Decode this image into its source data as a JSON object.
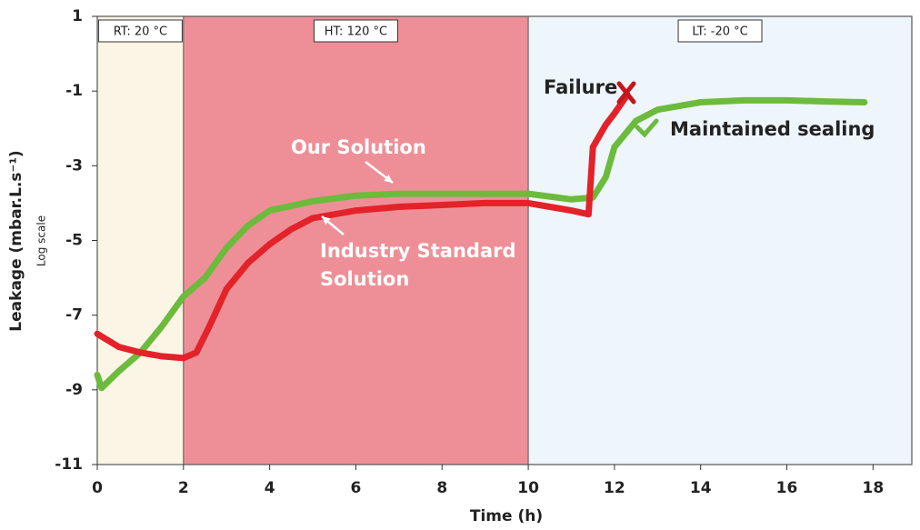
{
  "chart_data": {
    "type": "line",
    "x_label": "Time (h)",
    "y_label": "Leakage (mbar.L.s⁻¹)",
    "y_sublabel": "Log scale",
    "xlim": [
      0,
      18.9
    ],
    "ylim": [
      -11,
      1
    ],
    "xticks": [
      0,
      2,
      4,
      6,
      8,
      10,
      12,
      14,
      16,
      18
    ],
    "yticks": [
      1,
      -1,
      -3,
      -5,
      -7,
      -9,
      -11
    ],
    "regions": [
      {
        "label": "RT: 20 °C",
        "start": 0,
        "end": 2,
        "color": "#fbf5e6"
      },
      {
        "label": "HT: 120 °C",
        "start": 2,
        "end": 10,
        "color": "#ee8f97"
      },
      {
        "label": "LT: -20 °C",
        "start": 10,
        "end": 18.9,
        "color": "#eef5fb"
      }
    ],
    "series": [
      {
        "name": "Our Solution",
        "color": "#6cbb3c",
        "x": [
          0,
          0.1,
          0.5,
          1,
          1.5,
          2,
          2.5,
          3,
          3.5,
          4,
          5,
          6,
          7,
          8,
          9,
          10,
          11,
          11.5,
          11.8,
          12,
          12.5,
          13,
          14,
          15,
          16,
          17,
          17.8
        ],
        "values": [
          -8.6,
          -8.95,
          -8.5,
          -8.0,
          -7.3,
          -6.5,
          -6.0,
          -5.2,
          -4.6,
          -4.2,
          -3.95,
          -3.8,
          -3.75,
          -3.75,
          -3.75,
          -3.75,
          -3.9,
          -3.85,
          -3.3,
          -2.5,
          -1.8,
          -1.5,
          -1.3,
          -1.25,
          -1.25,
          -1.28,
          -1.3
        ]
      },
      {
        "name": "Industry Standard Solution",
        "color": "#e3222a",
        "x": [
          0,
          0.5,
          1,
          1.5,
          2,
          2.3,
          2.6,
          3,
          3.5,
          4,
          4.5,
          5,
          6,
          7,
          8,
          9,
          10,
          10.5,
          11,
          11.4,
          11.5,
          11.8,
          12,
          12.3
        ],
        "values": [
          -7.5,
          -7.85,
          -8.0,
          -8.1,
          -8.15,
          -8.0,
          -7.3,
          -6.3,
          -5.6,
          -5.1,
          -4.7,
          -4.4,
          -4.2,
          -4.1,
          -4.05,
          -4.0,
          -4.0,
          -4.1,
          -4.2,
          -4.3,
          -2.5,
          -1.9,
          -1.6,
          -1.1
        ]
      }
    ],
    "annotations": {
      "our_solution": "Our Solution",
      "industry_line1": "Industry Standard",
      "industry_line2": "Solution",
      "failure": "Failure",
      "maintained": "Maintained sealing"
    }
  }
}
